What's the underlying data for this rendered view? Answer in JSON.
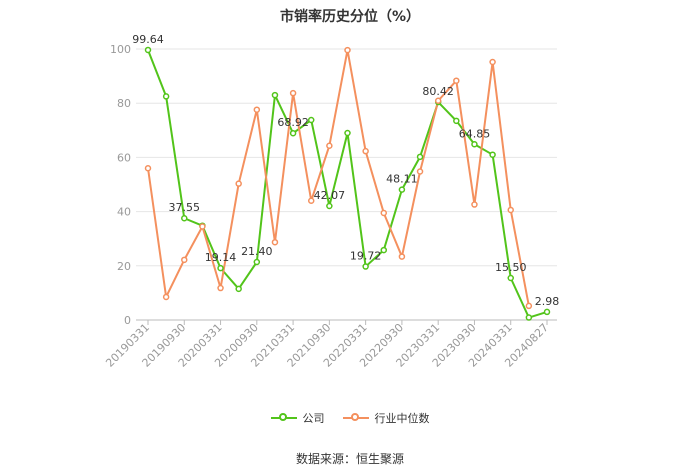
{
  "chart_data": {
    "type": "line",
    "title": "市销率历史分位（%）",
    "source": "数据来源：恒生聚源",
    "ylim": [
      0,
      100
    ],
    "yticks": [
      0,
      20,
      40,
      60,
      80,
      100
    ],
    "x_tick_labels": [
      "20190331",
      "20190930",
      "20200331",
      "20200930",
      "20210331",
      "20210930",
      "20220331",
      "20220930",
      "20230331",
      "20230930",
      "20240331",
      "20240827"
    ],
    "x": [
      "20190331",
      "20190630",
      "20190930",
      "20191231",
      "20200331",
      "20200630",
      "20200930",
      "20201231",
      "20210331",
      "20210630",
      "20210930",
      "20211231",
      "20220331",
      "20220630",
      "20220930",
      "20221231",
      "20230331",
      "20230630",
      "20230930",
      "20231231",
      "20240331",
      "20240630",
      "20240827"
    ],
    "series": [
      {
        "name": "公司",
        "color": "#52c41a",
        "values": [
          99.64,
          82.5,
          37.55,
          34.8,
          19.14,
          11.5,
          21.4,
          83.0,
          68.92,
          73.8,
          42.07,
          69.0,
          19.72,
          25.8,
          48.11,
          60.2,
          80.42,
          73.5,
          64.85,
          61.0,
          15.5,
          0.9,
          2.98
        ]
      },
      {
        "name": "行业中位数",
        "color": "#f4905e",
        "values": [
          56.0,
          8.5,
          22.2,
          34.5,
          11.8,
          50.3,
          77.6,
          28.7,
          83.7,
          44.0,
          64.3,
          99.6,
          62.3,
          39.5,
          23.4,
          54.8,
          80.9,
          88.3,
          42.6,
          95.2,
          40.6,
          5.2,
          null
        ]
      }
    ],
    "data_labels": [
      {
        "series": 0,
        "index": 0,
        "text": "99.64"
      },
      {
        "series": 0,
        "index": 2,
        "text": "37.55"
      },
      {
        "series": 0,
        "index": 4,
        "text": "19.14"
      },
      {
        "series": 0,
        "index": 6,
        "text": "21.40"
      },
      {
        "series": 0,
        "index": 8,
        "text": "68.92"
      },
      {
        "series": 0,
        "index": 10,
        "text": "42.07"
      },
      {
        "series": 0,
        "index": 12,
        "text": "19.72"
      },
      {
        "series": 0,
        "index": 14,
        "text": "48.11"
      },
      {
        "series": 0,
        "index": 16,
        "text": "80.42"
      },
      {
        "series": 0,
        "index": 18,
        "text": "64.85"
      },
      {
        "series": 0,
        "index": 20,
        "text": "15.50"
      },
      {
        "series": 0,
        "index": 22,
        "text": "2.98"
      }
    ],
    "grid": true,
    "legend": "bottom-center",
    "legend_items": [
      {
        "name": "公司",
        "color": "#52c41a"
      },
      {
        "name": "行业中位数",
        "color": "#f4905e"
      }
    ]
  }
}
